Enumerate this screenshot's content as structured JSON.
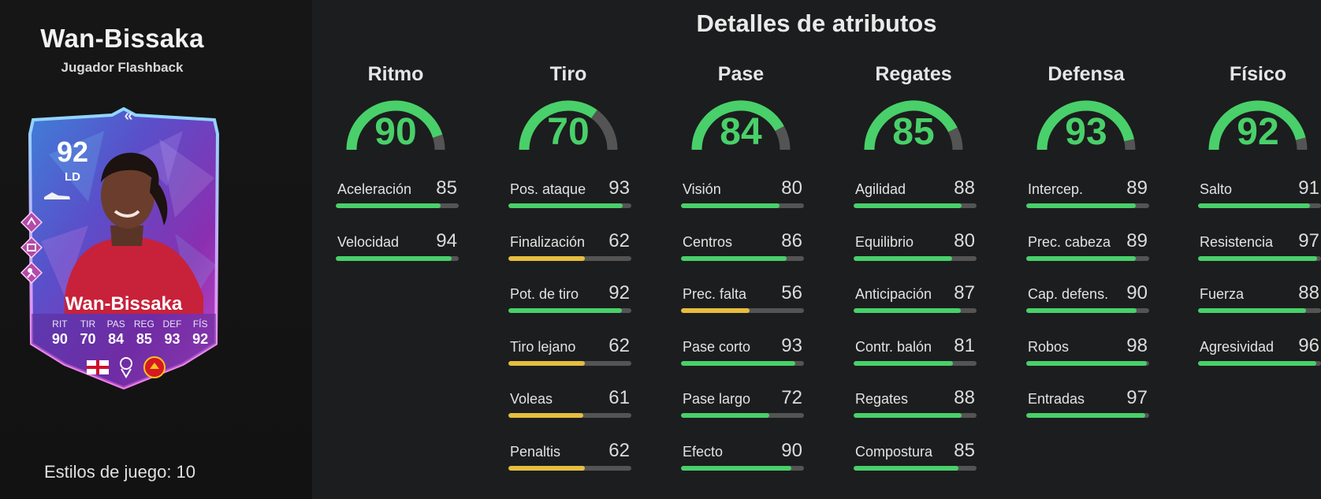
{
  "player": {
    "name": "Wan-Bissaka",
    "subtitle": "Jugador Flashback",
    "playstyles_label": "Estilos de juego: 10"
  },
  "card": {
    "rating": "92",
    "position": "LD",
    "name": "Wan-Bissaka",
    "chevrons": "«",
    "stats": [
      {
        "label": "RIT",
        "value": "90"
      },
      {
        "label": "TIR",
        "value": "70"
      },
      {
        "label": "PAS",
        "value": "84"
      },
      {
        "label": "REG",
        "value": "85"
      },
      {
        "label": "DEF",
        "value": "93"
      },
      {
        "label": "FÍS",
        "value": "92"
      }
    ],
    "nation_icon": "england-flag-icon",
    "league_icon": "premier-league-icon",
    "club_icon": "manchester-united-crest-icon",
    "playstyle_icons": [
      "playstyle-icon-1",
      "playstyle-icon-2",
      "playstyle-icon-3"
    ]
  },
  "details_title": "Detalles de atributos",
  "colors": {
    "green": "#49d06a",
    "yellow": "#e6bd3f",
    "track": "#545454",
    "background": "#1c1d1e"
  },
  "categories": [
    {
      "name": "Ritmo",
      "value": 90,
      "attributes": [
        {
          "name": "Aceleración",
          "value": 85
        },
        {
          "name": "Velocidad",
          "value": 94
        }
      ]
    },
    {
      "name": "Tiro",
      "value": 70,
      "attributes": [
        {
          "name": "Pos. ataque",
          "value": 93
        },
        {
          "name": "Finalización",
          "value": 62
        },
        {
          "name": "Pot. de tiro",
          "value": 92
        },
        {
          "name": "Tiro lejano",
          "value": 62
        },
        {
          "name": "Voleas",
          "value": 61
        },
        {
          "name": "Penaltis",
          "value": 62
        }
      ]
    },
    {
      "name": "Pase",
      "value": 84,
      "attributes": [
        {
          "name": "Visión",
          "value": 80
        },
        {
          "name": "Centros",
          "value": 86
        },
        {
          "name": "Prec. falta",
          "value": 56
        },
        {
          "name": "Pase corto",
          "value": 93
        },
        {
          "name": "Pase largo",
          "value": 72
        },
        {
          "name": "Efecto",
          "value": 90
        }
      ]
    },
    {
      "name": "Regates",
      "value": 85,
      "attributes": [
        {
          "name": "Agilidad",
          "value": 88
        },
        {
          "name": "Equilibrio",
          "value": 80
        },
        {
          "name": "Anticipación",
          "value": 87
        },
        {
          "name": "Contr. balón",
          "value": 81
        },
        {
          "name": "Regates",
          "value": 88
        },
        {
          "name": "Compostura",
          "value": 85
        }
      ]
    },
    {
      "name": "Defensa",
      "value": 93,
      "attributes": [
        {
          "name": "Intercep.",
          "value": 89
        },
        {
          "name": "Prec. cabeza",
          "value": 89
        },
        {
          "name": "Cap. defens.",
          "value": 90
        },
        {
          "name": "Robos",
          "value": 98
        },
        {
          "name": "Entradas",
          "value": 97
        }
      ]
    },
    {
      "name": "Físico",
      "value": 92,
      "attributes": [
        {
          "name": "Salto",
          "value": 91
        },
        {
          "name": "Resistencia",
          "value": 97
        },
        {
          "name": "Fuerza",
          "value": 88
        },
        {
          "name": "Agresividad",
          "value": 96
        }
      ]
    }
  ]
}
